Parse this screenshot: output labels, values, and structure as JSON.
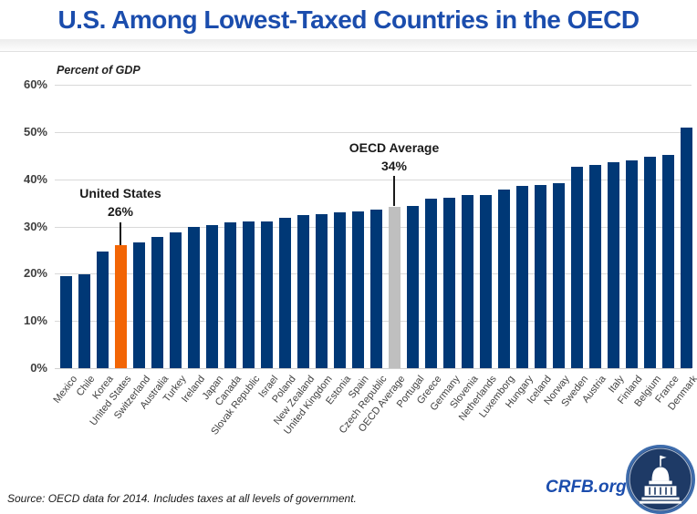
{
  "header": {
    "title": "U.S. Among Lowest-Taxed Countries in the OECD"
  },
  "chart_data": {
    "type": "bar",
    "title": "U.S. Among Lowest-Taxed Countries in the OECD",
    "ylabel": "Percent of GDP",
    "xlabel": "",
    "ylim": [
      0,
      60
    ],
    "grid": true,
    "legend": "none",
    "ytick_labels": [
      "0%",
      "10%",
      "20%",
      "30%",
      "40%",
      "50%",
      "60%"
    ],
    "categories": [
      "Mexico",
      "Chile",
      "Korea",
      "United States",
      "Switzerland",
      "Australia",
      "Turkey",
      "Ireland",
      "Japan",
      "Canada",
      "Slovak Republic",
      "Israel",
      "Poland",
      "New Zealand",
      "United Kingdom",
      "Estonia",
      "Spain",
      "Czech Republic",
      "OECD Average",
      "Portugal",
      "Greece",
      "Germany",
      "Slovenia",
      "Netherlands",
      "Luxemborg",
      "Hungary",
      "Iceland",
      "Norway",
      "Sweden",
      "Austria",
      "Italy",
      "Finland",
      "Belgium",
      "France",
      "Denmark"
    ],
    "values": [
      19.5,
      19.8,
      24.6,
      26.0,
      26.6,
      27.8,
      28.7,
      29.9,
      30.3,
      30.8,
      31.0,
      31.1,
      31.9,
      32.4,
      32.6,
      32.9,
      33.2,
      33.5,
      34.2,
      34.4,
      35.9,
      36.1,
      36.6,
      36.7,
      37.8,
      38.5,
      38.7,
      39.1,
      42.7,
      43.0,
      43.6,
      43.9,
      44.7,
      45.2,
      50.9
    ],
    "highlighted_bars": {
      "United States": "#F26505",
      "OECD Average": "#BFBFBF"
    },
    "bar_color_default": "#003876",
    "annotations": [
      {
        "label": "United States",
        "value_label": "26%",
        "target": "United States"
      },
      {
        "label": "OECD Average",
        "value_label": "34%",
        "target": "OECD Average"
      }
    ]
  },
  "footer": {
    "source": "Source: OECD data for 2014. Includes taxes at all levels of government.",
    "brand": "CRFB.org"
  },
  "colors": {
    "title_blue": "#1B4DAD",
    "bar_navy": "#003876",
    "bar_orange": "#F26505",
    "bar_gray": "#BFBFBF",
    "gridline": "#D9D9D9",
    "logo_navy": "#1E3A66",
    "logo_ring": "#3E6CAC"
  }
}
